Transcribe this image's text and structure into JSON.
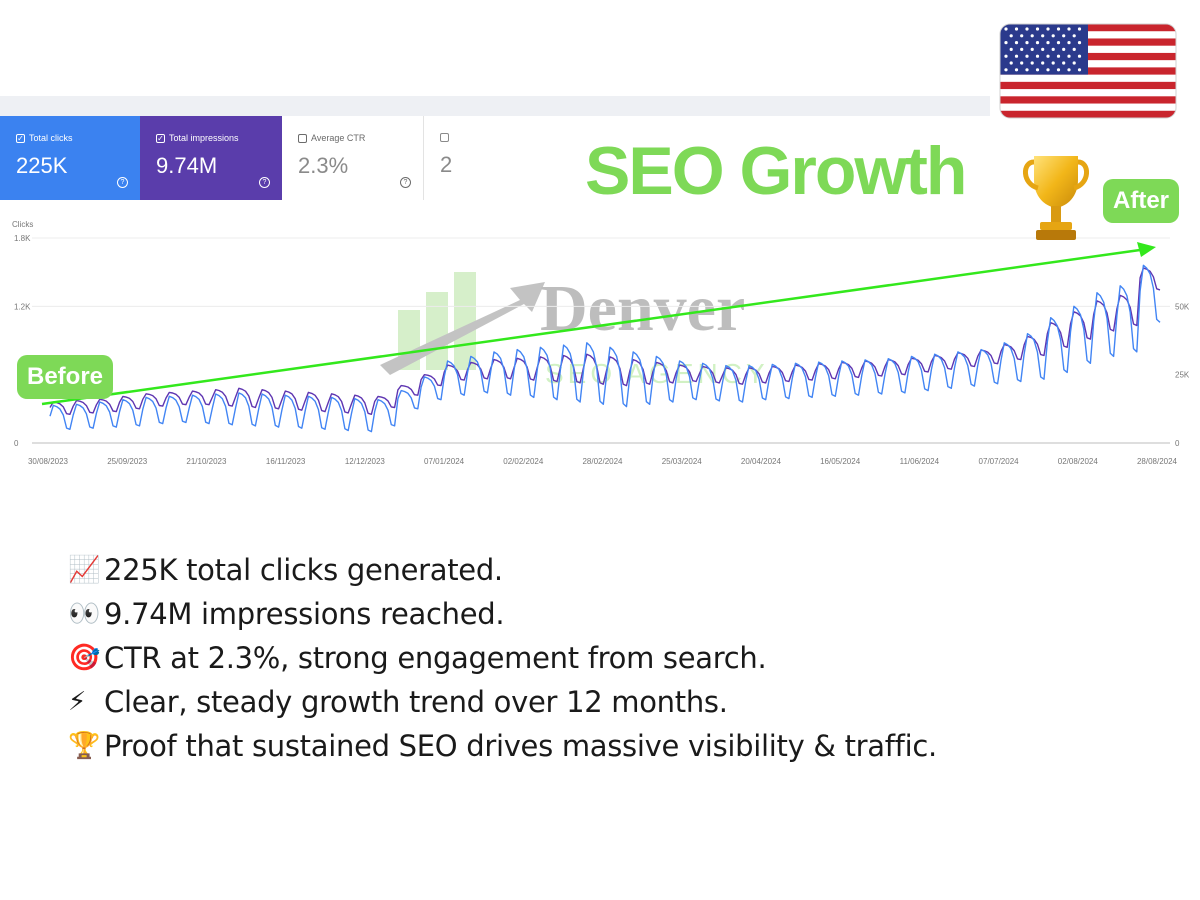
{
  "header": {
    "title": "SEO Growth",
    "watermark_brand": "Denver",
    "watermark_sub": "SEO AGENCY"
  },
  "metrics": {
    "total_clicks": {
      "label": "Total clicks",
      "value": "225K"
    },
    "total_impressions": {
      "label": "Total impressions",
      "value": "9.74M"
    },
    "average_ctr": {
      "label": "Average CTR",
      "value": "2.3%"
    },
    "fourth": {
      "value": "2"
    }
  },
  "badges": {
    "before": "Before",
    "after": "After"
  },
  "colors": {
    "clicks_blue": "#4285f4",
    "impressions_purple": "#5e35b1",
    "accent_green": "#7ed957",
    "arrow_green": "#33e81c"
  },
  "icons": [
    "checkbox-icon",
    "help-icon",
    "trophy-icon",
    "us-flag-icon",
    "chart-up-emoji",
    "eyes-emoji",
    "target-emoji",
    "lightning-emoji"
  ],
  "chart_data": {
    "type": "line",
    "left_axis": {
      "label": "Clicks",
      "ticks": [
        "1.8K",
        "1.2K",
        "0"
      ],
      "range": [
        0,
        1800
      ]
    },
    "right_axis": {
      "ticks": [
        "50K",
        "25K",
        "0"
      ],
      "range": [
        0,
        75000
      ]
    },
    "x_tick_labels": [
      "30/08/2023",
      "25/09/2023",
      "21/10/2023",
      "16/11/2023",
      "12/12/2023",
      "07/01/2024",
      "02/02/2024",
      "28/02/2024",
      "25/03/2024",
      "20/04/2024",
      "16/05/2024",
      "11/06/2024",
      "07/07/2024",
      "02/08/2024",
      "28/08/2024"
    ],
    "x_range": [
      "2023-08-30",
      "2024-08-28"
    ],
    "series": [
      {
        "key": "clicks",
        "color": "#4285f4",
        "weekly_peaks": [
          330,
          340,
          360,
          380,
          400,
          410,
          420,
          430,
          440,
          430,
          420,
          410,
          400,
          390,
          380,
          460,
          580,
          720,
          760,
          800,
          820,
          840,
          860,
          880,
          840,
          800,
          760,
          720,
          700,
          680,
          680,
          690,
          700,
          710,
          720,
          730,
          740,
          760,
          780,
          800,
          820,
          880,
          960,
          1100,
          1200,
          1320,
          1380,
          1560
        ],
        "weekly_troughs": [
          120,
          130,
          140,
          150,
          170,
          180,
          170,
          160,
          150,
          140,
          130,
          120,
          110,
          100,
          150,
          300,
          380,
          420,
          440,
          420,
          400,
          380,
          360,
          340,
          320,
          340,
          360,
          380,
          370,
          360,
          380,
          390,
          400,
          410,
          420,
          430,
          440,
          460,
          480,
          500,
          520,
          540,
          560,
          620,
          700,
          760,
          800,
          1060
        ]
      },
      {
        "key": "impressions",
        "color": "#5e35b1",
        "weekly_peaks": [
          15000,
          15500,
          16000,
          17000,
          18000,
          18500,
          19000,
          19500,
          20000,
          19500,
          19000,
          18500,
          18000,
          17500,
          17000,
          21000,
          25000,
          28500,
          29500,
          30500,
          31000,
          31500,
          32000,
          32500,
          31500,
          30500,
          29500,
          28500,
          28000,
          27500,
          27500,
          28000,
          28500,
          29000,
          29500,
          30000,
          30500,
          31000,
          32000,
          33000,
          34000,
          36000,
          39000,
          44000,
          48000,
          52000,
          54000,
          64000
        ],
        "weekly_troughs": [
          10500,
          11000,
          11500,
          12500,
          13500,
          14000,
          14000,
          13500,
          13000,
          12500,
          12000,
          11500,
          11000,
          10500,
          13000,
          17500,
          21000,
          23000,
          23500,
          23500,
          23000,
          22500,
          22000,
          21500,
          21000,
          21500,
          22000,
          22500,
          22000,
          21500,
          22000,
          22500,
          23000,
          23500,
          24000,
          24500,
          25000,
          26000,
          27000,
          28000,
          29000,
          30500,
          32000,
          35000,
          38000,
          41000,
          43000,
          56000
        ]
      }
    ],
    "trend_arrow": {
      "from_label": "Before",
      "to_label": "After"
    }
  },
  "bullets": [
    {
      "icon": "chart-up-emoji",
      "emoji": "📈",
      "text": "225K total clicks generated."
    },
    {
      "icon": "eyes-emoji",
      "emoji": "👀",
      "text": "9.74M impressions reached."
    },
    {
      "icon": "target-emoji",
      "emoji": "🎯",
      "text": "CTR at 2.3%, strong engagement from search."
    },
    {
      "icon": "lightning-emoji",
      "emoji": "⚡",
      "text": "Clear, steady growth trend over 12 months."
    },
    {
      "icon": "trophy-emoji",
      "emoji": "🏆",
      "text": "Proof that sustained SEO drives massive visibility & traffic."
    }
  ]
}
